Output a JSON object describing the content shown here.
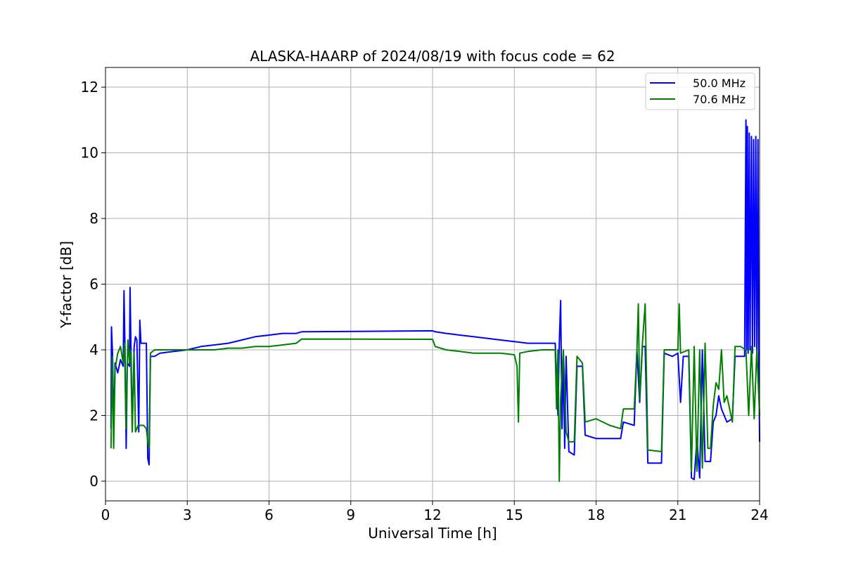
{
  "chart_data": {
    "type": "line",
    "title": "ALASKA-HAARP of 2024/08/19 with focus code = 62",
    "xlabel": "Universal Time [h]",
    "ylabel": "Y-factor [dB]",
    "xlim": [
      0,
      24
    ],
    "ylim": [
      -0.6,
      12.6
    ],
    "xticks": [
      0,
      3,
      6,
      9,
      12,
      15,
      18,
      21,
      24
    ],
    "xtick_labels": [
      "0",
      "3",
      "6",
      "9",
      "12",
      "15",
      "18",
      "21",
      "24"
    ],
    "yticks": [
      0,
      2,
      4,
      6,
      8,
      10,
      12
    ],
    "ytick_labels": [
      "0",
      "2",
      "4",
      "6",
      "8",
      "10",
      "12"
    ],
    "grid": true,
    "legend_position": "top-right",
    "series": [
      {
        "name": "50.0 MHz",
        "color": "#0000ff",
        "points": [
          [
            0.2,
            1.6
          ],
          [
            0.22,
            4.7
          ],
          [
            0.26,
            3.8
          ],
          [
            0.3,
            1.5
          ],
          [
            0.35,
            3.6
          ],
          [
            0.45,
            3.3
          ],
          [
            0.55,
            3.7
          ],
          [
            0.65,
            3.5
          ],
          [
            0.68,
            5.8
          ],
          [
            0.72,
            3.8
          ],
          [
            0.76,
            1.0
          ],
          [
            0.8,
            3.6
          ],
          [
            0.88,
            3.5
          ],
          [
            0.9,
            5.9
          ],
          [
            0.94,
            3.8
          ],
          [
            0.98,
            1.6
          ],
          [
            1.05,
            4.1
          ],
          [
            1.1,
            4.4
          ],
          [
            1.15,
            4.3
          ],
          [
            1.22,
            1.5
          ],
          [
            1.26,
            4.9
          ],
          [
            1.3,
            4.2
          ],
          [
            1.4,
            4.2
          ],
          [
            1.5,
            4.2
          ],
          [
            1.55,
            0.7
          ],
          [
            1.6,
            0.5
          ],
          [
            1.65,
            3.8
          ],
          [
            1.8,
            3.8
          ],
          [
            2.0,
            3.9
          ],
          [
            2.5,
            3.95
          ],
          [
            3.0,
            4.0
          ],
          [
            3.5,
            4.1
          ],
          [
            4.0,
            4.15
          ],
          [
            4.5,
            4.2
          ],
          [
            5.0,
            4.3
          ],
          [
            5.5,
            4.4
          ],
          [
            6.0,
            4.45
          ],
          [
            6.5,
            4.5
          ],
          [
            7.0,
            4.5
          ],
          [
            7.2,
            4.55
          ],
          [
            12.0,
            4.58
          ],
          [
            12.1,
            4.55
          ],
          [
            12.5,
            4.5
          ],
          [
            13.0,
            4.45
          ],
          [
            13.5,
            4.4
          ],
          [
            14.0,
            4.35
          ],
          [
            14.5,
            4.3
          ],
          [
            15.0,
            4.25
          ],
          [
            15.5,
            4.2
          ],
          [
            16.0,
            4.2
          ],
          [
            16.5,
            4.2
          ],
          [
            16.6,
            2.0
          ],
          [
            16.65,
            4.2
          ],
          [
            16.7,
            5.5
          ],
          [
            16.75,
            1.6
          ],
          [
            16.8,
            3.8
          ],
          [
            16.85,
            1.0
          ],
          [
            16.9,
            3.8
          ],
          [
            17.0,
            0.9
          ],
          [
            17.2,
            0.8
          ],
          [
            17.3,
            3.5
          ],
          [
            17.5,
            3.5
          ],
          [
            17.6,
            1.4
          ],
          [
            18.0,
            1.3
          ],
          [
            18.5,
            1.3
          ],
          [
            18.9,
            1.3
          ],
          [
            19.0,
            1.8
          ],
          [
            19.4,
            1.7
          ],
          [
            19.5,
            4.0
          ],
          [
            19.6,
            2.4
          ],
          [
            19.7,
            4.1
          ],
          [
            19.8,
            4.1
          ],
          [
            19.9,
            0.55
          ],
          [
            20.4,
            0.55
          ],
          [
            20.5,
            3.9
          ],
          [
            20.8,
            3.8
          ],
          [
            21.0,
            3.9
          ],
          [
            21.1,
            2.4
          ],
          [
            21.2,
            3.8
          ],
          [
            21.4,
            3.8
          ],
          [
            21.5,
            0.1
          ],
          [
            21.6,
            0.05
          ],
          [
            21.7,
            1.3
          ],
          [
            21.8,
            0.1
          ],
          [
            21.9,
            4.0
          ],
          [
            22.0,
            0.6
          ],
          [
            22.2,
            0.6
          ],
          [
            22.3,
            1.8
          ],
          [
            22.4,
            2.0
          ],
          [
            22.5,
            2.6
          ],
          [
            22.6,
            2.2
          ],
          [
            22.8,
            1.8
          ],
          [
            23.0,
            1.9
          ],
          [
            23.1,
            3.8
          ],
          [
            23.3,
            3.8
          ],
          [
            23.45,
            3.8
          ],
          [
            23.5,
            11.0
          ],
          [
            23.52,
            4.0
          ],
          [
            23.55,
            10.8
          ],
          [
            23.58,
            3.9
          ],
          [
            23.62,
            10.6
          ],
          [
            23.65,
            4.0
          ],
          [
            23.7,
            10.5
          ],
          [
            23.74,
            3.9
          ],
          [
            23.78,
            10.4
          ],
          [
            23.82,
            4.1
          ],
          [
            23.86,
            10.5
          ],
          [
            23.9,
            3.8
          ],
          [
            23.94,
            10.4
          ],
          [
            23.97,
            3.9
          ],
          [
            24.0,
            1.2
          ]
        ]
      },
      {
        "name": "70.6 MHz",
        "color": "#008000",
        "points": [
          [
            0.2,
            1.0
          ],
          [
            0.25,
            3.8
          ],
          [
            0.3,
            1.0
          ],
          [
            0.35,
            3.4
          ],
          [
            0.45,
            3.9
          ],
          [
            0.55,
            4.1
          ],
          [
            0.65,
            3.6
          ],
          [
            0.7,
            4.2
          ],
          [
            0.75,
            1.6
          ],
          [
            0.82,
            4.3
          ],
          [
            0.88,
            3.6
          ],
          [
            0.92,
            4.0
          ],
          [
            0.98,
            1.5
          ],
          [
            1.05,
            3.9
          ],
          [
            1.1,
            1.5
          ],
          [
            1.2,
            1.7
          ],
          [
            1.3,
            1.7
          ],
          [
            1.4,
            1.7
          ],
          [
            1.5,
            1.6
          ],
          [
            1.55,
            1.2
          ],
          [
            1.6,
            1.0
          ],
          [
            1.65,
            3.9
          ],
          [
            1.8,
            4.0
          ],
          [
            2.0,
            4.0
          ],
          [
            2.5,
            4.0
          ],
          [
            3.0,
            4.0
          ],
          [
            3.5,
            4.0
          ],
          [
            4.0,
            4.0
          ],
          [
            4.5,
            4.05
          ],
          [
            5.0,
            4.05
          ],
          [
            5.5,
            4.1
          ],
          [
            6.0,
            4.1
          ],
          [
            6.5,
            4.15
          ],
          [
            7.0,
            4.2
          ],
          [
            7.2,
            4.33
          ],
          [
            12.0,
            4.32
          ],
          [
            12.1,
            4.1
          ],
          [
            12.5,
            4.0
          ],
          [
            13.0,
            3.95
          ],
          [
            13.5,
            3.9
          ],
          [
            14.0,
            3.9
          ],
          [
            14.5,
            3.9
          ],
          [
            15.0,
            3.85
          ],
          [
            15.1,
            3.5
          ],
          [
            15.15,
            1.8
          ],
          [
            15.2,
            3.9
          ],
          [
            15.5,
            3.95
          ],
          [
            16.0,
            4.0
          ],
          [
            16.5,
            4.0
          ],
          [
            16.55,
            2.2
          ],
          [
            16.6,
            4.0
          ],
          [
            16.65,
            0.0
          ],
          [
            16.7,
            2.5
          ],
          [
            16.8,
            4.0
          ],
          [
            16.9,
            1.5
          ],
          [
            17.0,
            1.2
          ],
          [
            17.2,
            1.2
          ],
          [
            17.3,
            3.8
          ],
          [
            17.5,
            3.6
          ],
          [
            17.6,
            1.8
          ],
          [
            18.0,
            1.9
          ],
          [
            18.5,
            1.7
          ],
          [
            18.9,
            1.6
          ],
          [
            19.0,
            2.2
          ],
          [
            19.4,
            2.2
          ],
          [
            19.5,
            4.0
          ],
          [
            19.55,
            5.4
          ],
          [
            19.6,
            2.5
          ],
          [
            19.7,
            4.2
          ],
          [
            19.8,
            5.4
          ],
          [
            19.9,
            0.95
          ],
          [
            20.4,
            0.9
          ],
          [
            20.5,
            4.0
          ],
          [
            20.8,
            4.0
          ],
          [
            21.0,
            4.0
          ],
          [
            21.05,
            5.4
          ],
          [
            21.1,
            3.9
          ],
          [
            21.4,
            4.0
          ],
          [
            21.5,
            0.3
          ],
          [
            21.6,
            4.1
          ],
          [
            21.7,
            0.3
          ],
          [
            21.8,
            4.0
          ],
          [
            21.9,
            0.4
          ],
          [
            22.0,
            4.2
          ],
          [
            22.1,
            1.0
          ],
          [
            22.2,
            1.0
          ],
          [
            22.3,
            2.3
          ],
          [
            22.4,
            3.0
          ],
          [
            22.5,
            2.8
          ],
          [
            22.6,
            4.0
          ],
          [
            22.7,
            2.4
          ],
          [
            22.8,
            2.6
          ],
          [
            23.0,
            1.8
          ],
          [
            23.1,
            4.1
          ],
          [
            23.3,
            4.1
          ],
          [
            23.5,
            4.0
          ],
          [
            23.6,
            2.0
          ],
          [
            23.7,
            4.1
          ],
          [
            23.8,
            1.9
          ],
          [
            23.9,
            4.0
          ],
          [
            24.0,
            2.0
          ]
        ]
      }
    ]
  }
}
